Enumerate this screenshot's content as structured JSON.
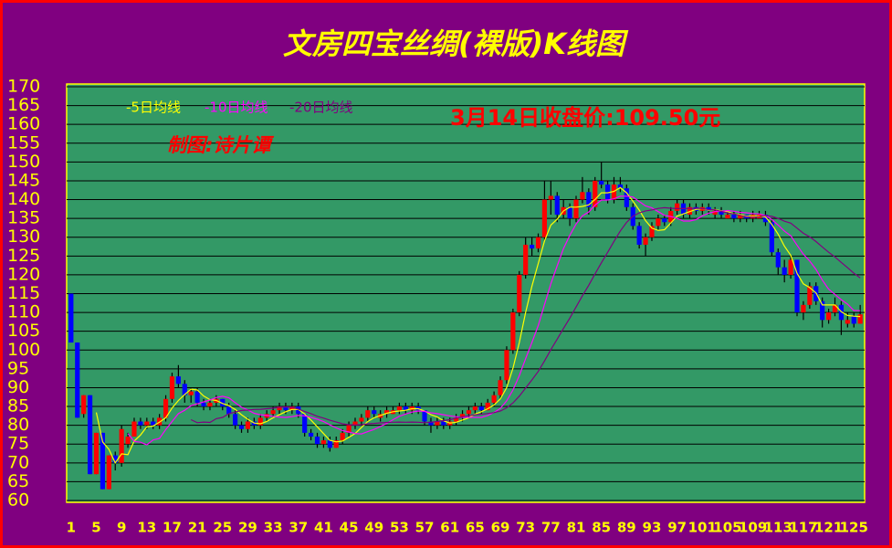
{
  "chart_data": {
    "type": "candlestick",
    "title": "文房四宝丝绸(裸版)K线图",
    "annotations": [
      "3月14日收盘价:109.50元",
      "制图:诗片谭"
    ],
    "up_color": "#ff0000",
    "down_color": "#0000ff",
    "moving_averages": [
      {
        "name": "-5日均线",
        "period": 5,
        "color": "#ffff00"
      },
      {
        "name": "-10日均线",
        "period": 10,
        "color": "#ff00ff"
      },
      {
        "name": "-20日均线",
        "period": 20,
        "color": "#800080"
      }
    ],
    "x": [
      1,
      2,
      3,
      4,
      5,
      6,
      7,
      8,
      9,
      10,
      11,
      12,
      13,
      14,
      15,
      16,
      17,
      18,
      19,
      20,
      21,
      22,
      23,
      24,
      25,
      26,
      27,
      28,
      29,
      30,
      31,
      32,
      33,
      34,
      35,
      36,
      37,
      38,
      39,
      40,
      41,
      42,
      43,
      44,
      45,
      46,
      47,
      48,
      49,
      50,
      51,
      52,
      53,
      54,
      55,
      56,
      57,
      58,
      59,
      60,
      61,
      62,
      63,
      64,
      65,
      66,
      67,
      68,
      69,
      70,
      71,
      72,
      73,
      74,
      75,
      76,
      77,
      78,
      79,
      80,
      81,
      82,
      83,
      84,
      85,
      86,
      87,
      88,
      89,
      90,
      91,
      92,
      93,
      94,
      95,
      96,
      97,
      98,
      99,
      100,
      101,
      102,
      103,
      104,
      105,
      106,
      107,
      108,
      109,
      110,
      111,
      112,
      113,
      114,
      115,
      116,
      117,
      118,
      119,
      120,
      121,
      122,
      123,
      124,
      125,
      126
    ],
    "open": [
      115,
      102,
      83,
      88,
      67,
      78,
      63,
      72,
      70,
      75,
      77,
      81,
      80,
      81,
      80,
      82,
      87,
      93,
      91,
      88,
      89,
      86,
      85,
      86,
      87,
      85,
      83,
      80,
      79,
      81,
      80,
      82,
      83,
      84,
      85,
      84,
      85,
      83,
      78,
      77,
      75,
      76,
      74,
      76,
      78,
      80,
      81,
      82,
      84,
      82,
      83,
      83,
      84,
      85,
      84,
      85,
      84,
      81,
      80,
      81,
      80,
      81,
      82,
      83,
      84,
      85,
      84,
      86,
      88,
      92,
      100,
      110,
      120,
      128,
      127,
      130,
      140,
      141,
      136,
      138,
      135,
      140,
      142,
      138,
      145,
      144,
      140,
      144,
      143,
      138,
      133,
      128,
      130,
      133,
      135,
      134,
      137,
      139,
      136,
      138,
      137,
      138,
      136,
      137,
      135,
      136,
      135,
      136,
      135,
      135,
      136,
      134,
      126,
      122,
      120,
      124,
      110,
      112,
      117,
      113,
      108,
      110,
      112,
      107,
      109,
      107
    ],
    "high": [
      115,
      102,
      88,
      88,
      78,
      78,
      72,
      73,
      80,
      78,
      82,
      82,
      82,
      82,
      83,
      88,
      94,
      96,
      92,
      90,
      90,
      87,
      87,
      88,
      87,
      86,
      84,
      81,
      82,
      82,
      83,
      84,
      85,
      86,
      86,
      86,
      86,
      83,
      79,
      78,
      77,
      77,
      77,
      79,
      81,
      82,
      83,
      85,
      85,
      84,
      85,
      85,
      86,
      86,
      86,
      86,
      84,
      82,
      82,
      82,
      82,
      83,
      84,
      85,
      86,
      86,
      87,
      89,
      93,
      101,
      111,
      121,
      130,
      130,
      131,
      145,
      145,
      142,
      140,
      139,
      141,
      146,
      143,
      146,
      150,
      145,
      146,
      146,
      144,
      139,
      134,
      131,
      134,
      136,
      136,
      138,
      140,
      140,
      139,
      139,
      139,
      139,
      138,
      138,
      137,
      137,
      137,
      136,
      137,
      137,
      137,
      135,
      127,
      124,
      125,
      124,
      113,
      118,
      118,
      114,
      111,
      114,
      113,
      110,
      110,
      112
    ],
    "low": [
      102,
      82,
      82,
      67,
      67,
      63,
      63,
      68,
      69,
      74,
      77,
      79,
      79,
      79,
      79,
      81,
      86,
      90,
      86,
      86,
      85,
      84,
      84,
      85,
      84,
      82,
      79,
      78,
      78,
      79,
      79,
      81,
      82,
      83,
      83,
      83,
      82,
      77,
      76,
      74,
      74,
      73,
      74,
      75,
      77,
      79,
      80,
      81,
      82,
      81,
      82,
      83,
      83,
      83,
      83,
      83,
      80,
      78,
      79,
      79,
      79,
      80,
      81,
      82,
      83,
      83,
      84,
      85,
      87,
      91,
      99,
      109,
      119,
      125,
      126,
      129,
      136,
      134,
      135,
      133,
      134,
      139,
      136,
      137,
      143,
      139,
      139,
      142,
      137,
      132,
      127,
      125,
      129,
      132,
      133,
      133,
      136,
      135,
      135,
      136,
      136,
      136,
      135,
      135,
      135,
      134,
      134,
      134,
      134,
      135,
      133,
      125,
      120,
      118,
      119,
      109,
      108,
      111,
      112,
      106,
      107,
      109,
      104,
      106,
      106,
      107
    ],
    "close": [
      102,
      82,
      88,
      67,
      78,
      63,
      72,
      70,
      79,
      77,
      81,
      80,
      81,
      80,
      82,
      87,
      93,
      91,
      88,
      89,
      86,
      85,
      86,
      87,
      85,
      83,
      80,
      79,
      81,
      80,
      82,
      83,
      84,
      85,
      84,
      85,
      83,
      78,
      77,
      75,
      76,
      74,
      76,
      78,
      80,
      81,
      82,
      84,
      83,
      83,
      84,
      84,
      85,
      84,
      85,
      84,
      81,
      80,
      81,
      80,
      81,
      82,
      83,
      84,
      85,
      84,
      86,
      88,
      92,
      100,
      110,
      120,
      128,
      127,
      130,
      140,
      141,
      136,
      138,
      135,
      140,
      142,
      138,
      145,
      144,
      140,
      144,
      143,
      138,
      133,
      128,
      130,
      133,
      135,
      134,
      137,
      139,
      136,
      138,
      137,
      138,
      137,
      137,
      136,
      136,
      135,
      136,
      135,
      136,
      136,
      134,
      126,
      122,
      120,
      124,
      110,
      112,
      117,
      113,
      108,
      110,
      112,
      108,
      108,
      107,
      109.5
    ],
    "xlim": [
      0.3,
      126.7
    ],
    "xticks": [
      1,
      5,
      9,
      13,
      17,
      21,
      25,
      29,
      33,
      37,
      41,
      45,
      49,
      53,
      57,
      61,
      65,
      69,
      73,
      77,
      81,
      85,
      89,
      93,
      97,
      101,
      105,
      109,
      113,
      117,
      121,
      125
    ],
    "ylim": [
      60,
      170
    ],
    "yticks": [
      60,
      65,
      70,
      75,
      80,
      85,
      90,
      95,
      100,
      105,
      110,
      115,
      120,
      125,
      130,
      135,
      140,
      145,
      150,
      155,
      160,
      165,
      170
    ],
    "grid": true
  }
}
